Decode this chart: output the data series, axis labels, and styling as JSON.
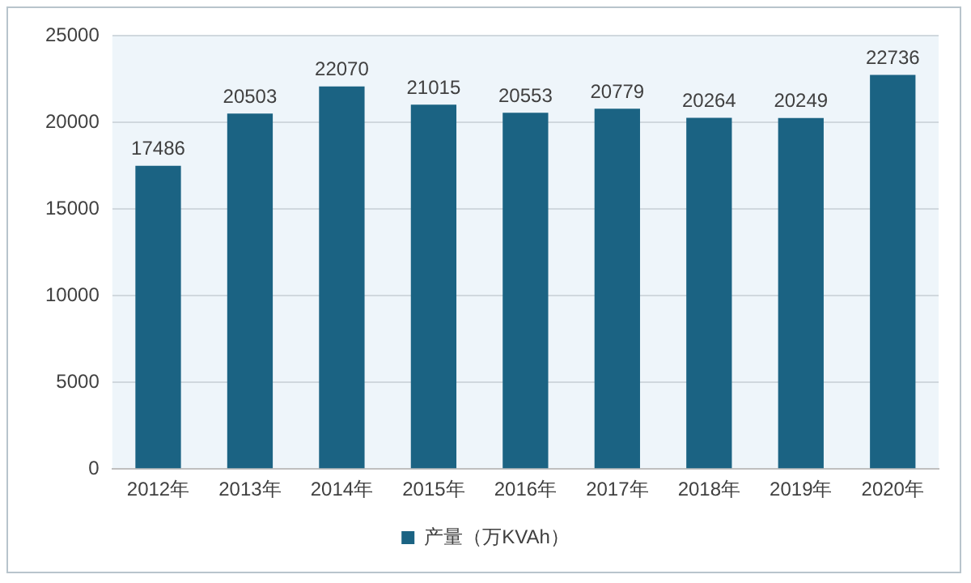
{
  "chart_data": {
    "type": "bar",
    "categories": [
      "2012年",
      "2013年",
      "2014年",
      "2015年",
      "2016年",
      "2017年",
      "2018年",
      "2019年",
      "2020年"
    ],
    "series": [
      {
        "name": "产量（万KVAh）",
        "color": "#1b6383",
        "values": [
          17486,
          20503,
          22070,
          21015,
          20553,
          20779,
          20264,
          20249,
          22736
        ]
      }
    ],
    "ylim": [
      0,
      25000
    ],
    "yticks": [
      0,
      5000,
      10000,
      15000,
      20000,
      25000
    ],
    "grid": "y",
    "legend": "bottom",
    "data_labels": true
  }
}
